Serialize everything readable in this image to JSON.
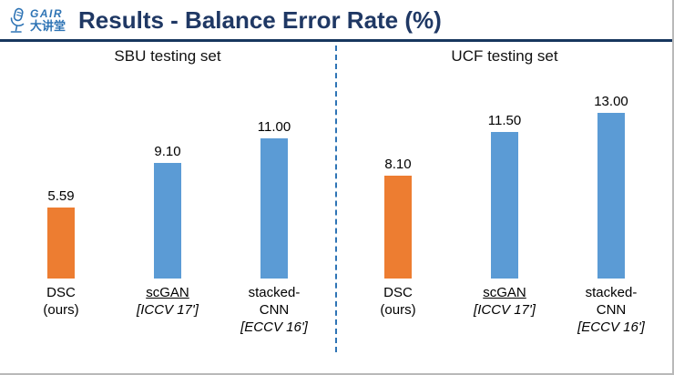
{
  "header": {
    "logo": {
      "brand": "GAIR",
      "sub": "大讲堂",
      "color": "#2E74B5"
    },
    "title": "Results - Balance Error Rate (%)",
    "title_color": "#1F3864",
    "rule_color": "#17375E"
  },
  "divider": {
    "style": "dashed",
    "color": "#2E74B5"
  },
  "chart_data": [
    {
      "type": "bar",
      "title": "SBU testing set",
      "categories": [
        "DSC (ours)",
        "scGAN [ICCV 17']",
        "stacked-CNN [ECCV 16']"
      ],
      "values": [
        5.59,
        9.1,
        11.0
      ],
      "value_labels": [
        "5.59",
        "9.10",
        "11.00"
      ],
      "bar_colors": [
        "#ED7D31",
        "#5B9BD5",
        "#5B9BD5"
      ],
      "ylim": [
        0,
        14
      ],
      "grid": false,
      "legend": false,
      "xlabel": "",
      "ylabel": "",
      "label_lines": [
        [
          {
            "text": "DSC"
          },
          {
            "text": "(ours)"
          }
        ],
        [
          {
            "text": "scGAN",
            "underline": true
          },
          {
            "text": "[ICCV 17']",
            "italic": true
          }
        ],
        [
          {
            "text": "stacked-"
          },
          {
            "text": "CNN"
          },
          {
            "text": "[ECCV 16']",
            "italic": true
          }
        ]
      ]
    },
    {
      "type": "bar",
      "title": "UCF testing set",
      "categories": [
        "DSC (ours)",
        "scGAN [ICCV 17']",
        "stacked-CNN [ECCV 16']"
      ],
      "values": [
        8.1,
        11.5,
        13.0
      ],
      "value_labels": [
        "8.10",
        "11.50",
        "13.00"
      ],
      "bar_colors": [
        "#ED7D31",
        "#5B9BD5",
        "#5B9BD5"
      ],
      "ylim": [
        0,
        14
      ],
      "grid": false,
      "legend": false,
      "xlabel": "",
      "ylabel": "",
      "label_lines": [
        [
          {
            "text": "DSC"
          },
          {
            "text": "(ours)"
          }
        ],
        [
          {
            "text": "scGAN",
            "underline": true
          },
          {
            "text": "[ICCV 17']",
            "italic": true
          }
        ],
        [
          {
            "text": "stacked-"
          },
          {
            "text": "CNN"
          },
          {
            "text": "[ECCV 16']",
            "italic": true
          }
        ]
      ]
    }
  ]
}
